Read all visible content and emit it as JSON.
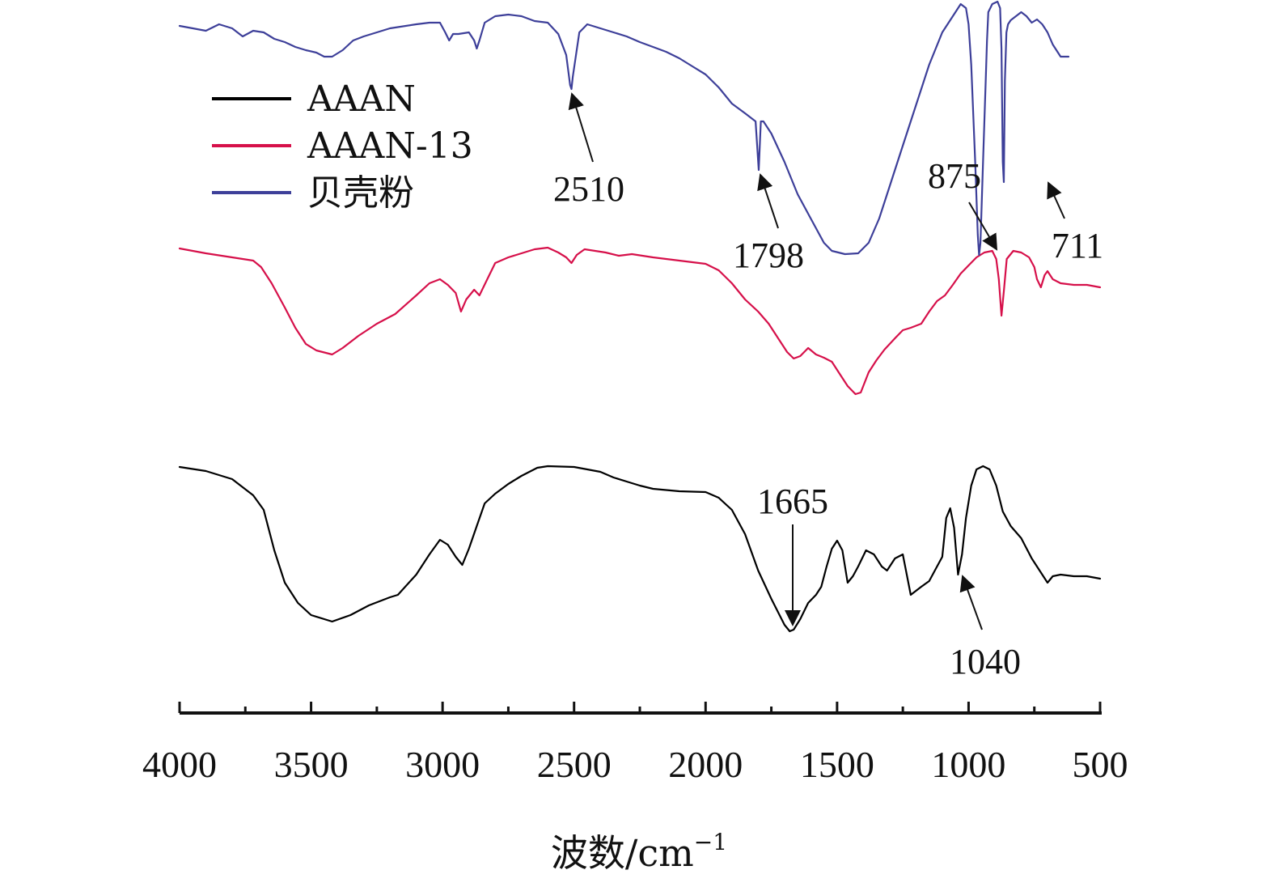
{
  "chart_data": {
    "type": "line",
    "title": "",
    "xlabel": "波数/cm",
    "xlabel_sup": "−1",
    "ylabel": "",
    "xlim": [
      4000,
      500
    ],
    "x_reversed": true,
    "xticks": [
      4000,
      3500,
      3000,
      2500,
      2000,
      1500,
      1000,
      500
    ],
    "grid": false,
    "legend": {
      "placement": "top-left",
      "entries": [
        {
          "name": "AAAN",
          "color": "#000000"
        },
        {
          "name": "AAAN-13",
          "color": "#d6104a"
        },
        {
          "name": "贝壳粉",
          "color": "#3d3f99"
        }
      ]
    },
    "series": [
      {
        "name": "AAAN",
        "color": "#000000",
        "points": [
          [
            4000,
            577
          ],
          [
            3900,
            582
          ],
          [
            3800,
            592
          ],
          [
            3720,
            612
          ],
          [
            3680,
            630
          ],
          [
            3640,
            680
          ],
          [
            3600,
            720
          ],
          [
            3550,
            745
          ],
          [
            3500,
            760
          ],
          [
            3420,
            768
          ],
          [
            3350,
            760
          ],
          [
            3280,
            748
          ],
          [
            3200,
            738
          ],
          [
            3170,
            735
          ],
          [
            3100,
            710
          ],
          [
            3050,
            685
          ],
          [
            3010,
            667
          ],
          [
            2980,
            673
          ],
          [
            2950,
            688
          ],
          [
            2925,
            698
          ],
          [
            2900,
            678
          ],
          [
            2870,
            650
          ],
          [
            2840,
            622
          ],
          [
            2800,
            610
          ],
          [
            2750,
            598
          ],
          [
            2700,
            588
          ],
          [
            2640,
            578
          ],
          [
            2600,
            576
          ],
          [
            2500,
            577
          ],
          [
            2450,
            580
          ],
          [
            2400,
            583
          ],
          [
            2350,
            590
          ],
          [
            2300,
            595
          ],
          [
            2250,
            600
          ],
          [
            2200,
            604
          ],
          [
            2100,
            607
          ],
          [
            2000,
            608
          ],
          [
            1950,
            615
          ],
          [
            1900,
            630
          ],
          [
            1850,
            660
          ],
          [
            1800,
            705
          ],
          [
            1750,
            740
          ],
          [
            1700,
            772
          ],
          [
            1680,
            780
          ],
          [
            1665,
            778
          ],
          [
            1640,
            765
          ],
          [
            1610,
            745
          ],
          [
            1580,
            735
          ],
          [
            1560,
            725
          ],
          [
            1540,
            700
          ],
          [
            1520,
            678
          ],
          [
            1500,
            668
          ],
          [
            1480,
            680
          ],
          [
            1460,
            720
          ],
          [
            1440,
            712
          ],
          [
            1420,
            700
          ],
          [
            1390,
            680
          ],
          [
            1360,
            685
          ],
          [
            1330,
            700
          ],
          [
            1310,
            705
          ],
          [
            1280,
            690
          ],
          [
            1250,
            685
          ],
          [
            1220,
            735
          ],
          [
            1180,
            725
          ],
          [
            1150,
            718
          ],
          [
            1120,
            700
          ],
          [
            1100,
            688
          ],
          [
            1085,
            640
          ],
          [
            1070,
            628
          ],
          [
            1055,
            652
          ],
          [
            1040,
            710
          ],
          [
            1025,
            685
          ],
          [
            1010,
            640
          ],
          [
            990,
            600
          ],
          [
            970,
            580
          ],
          [
            945,
            576
          ],
          [
            920,
            580
          ],
          [
            895,
            600
          ],
          [
            870,
            632
          ],
          [
            840,
            650
          ],
          [
            800,
            665
          ],
          [
            760,
            690
          ],
          [
            720,
            710
          ],
          [
            700,
            720
          ],
          [
            680,
            712
          ],
          [
            650,
            710
          ],
          [
            600,
            712
          ],
          [
            550,
            712
          ],
          [
            500,
            715
          ]
        ]
      },
      {
        "name": "AAAN-13",
        "color": "#d6104a",
        "points": [
          [
            4000,
            307
          ],
          [
            3900,
            313
          ],
          [
            3800,
            318
          ],
          [
            3720,
            322
          ],
          [
            3690,
            330
          ],
          [
            3650,
            350
          ],
          [
            3600,
            380
          ],
          [
            3560,
            405
          ],
          [
            3520,
            425
          ],
          [
            3480,
            433
          ],
          [
            3420,
            438
          ],
          [
            3380,
            430
          ],
          [
            3320,
            415
          ],
          [
            3250,
            400
          ],
          [
            3180,
            388
          ],
          [
            3100,
            365
          ],
          [
            3050,
            350
          ],
          [
            3010,
            345
          ],
          [
            2980,
            352
          ],
          [
            2950,
            362
          ],
          [
            2930,
            385
          ],
          [
            2910,
            370
          ],
          [
            2880,
            358
          ],
          [
            2860,
            365
          ],
          [
            2830,
            345
          ],
          [
            2800,
            325
          ],
          [
            2750,
            318
          ],
          [
            2700,
            313
          ],
          [
            2650,
            308
          ],
          [
            2600,
            306
          ],
          [
            2560,
            312
          ],
          [
            2530,
            318
          ],
          [
            2510,
            325
          ],
          [
            2490,
            315
          ],
          [
            2460,
            308
          ],
          [
            2420,
            310
          ],
          [
            2380,
            312
          ],
          [
            2330,
            316
          ],
          [
            2280,
            314
          ],
          [
            2200,
            318
          ],
          [
            2100,
            322
          ],
          [
            2000,
            326
          ],
          [
            1950,
            334
          ],
          [
            1900,
            350
          ],
          [
            1850,
            370
          ],
          [
            1800,
            385
          ],
          [
            1760,
            400
          ],
          [
            1720,
            420
          ],
          [
            1690,
            435
          ],
          [
            1665,
            443
          ],
          [
            1640,
            440
          ],
          [
            1610,
            430
          ],
          [
            1580,
            438
          ],
          [
            1550,
            442
          ],
          [
            1520,
            447
          ],
          [
            1490,
            462
          ],
          [
            1460,
            477
          ],
          [
            1430,
            487
          ],
          [
            1410,
            485
          ],
          [
            1380,
            460
          ],
          [
            1350,
            445
          ],
          [
            1320,
            432
          ],
          [
            1280,
            418
          ],
          [
            1250,
            408
          ],
          [
            1220,
            405
          ],
          [
            1180,
            400
          ],
          [
            1150,
            385
          ],
          [
            1120,
            372
          ],
          [
            1090,
            365
          ],
          [
            1060,
            352
          ],
          [
            1030,
            338
          ],
          [
            1000,
            328
          ],
          [
            970,
            318
          ],
          [
            940,
            312
          ],
          [
            910,
            310
          ],
          [
            895,
            320
          ],
          [
            885,
            345
          ],
          [
            875,
            390
          ],
          [
            866,
            360
          ],
          [
            855,
            320
          ],
          [
            830,
            310
          ],
          [
            800,
            312
          ],
          [
            770,
            318
          ],
          [
            750,
            330
          ],
          [
            740,
            345
          ],
          [
            725,
            355
          ],
          [
            711,
            340
          ],
          [
            700,
            335
          ],
          [
            680,
            345
          ],
          [
            650,
            350
          ],
          [
            600,
            352
          ],
          [
            550,
            352
          ],
          [
            500,
            355
          ]
        ]
      },
      {
        "name": "贝壳粉",
        "color": "#3d3f99",
        "points": [
          [
            4000,
            32
          ],
          [
            3950,
            35
          ],
          [
            3900,
            38
          ],
          [
            3850,
            30
          ],
          [
            3800,
            35
          ],
          [
            3760,
            45
          ],
          [
            3720,
            38
          ],
          [
            3680,
            40
          ],
          [
            3640,
            48
          ],
          [
            3600,
            52
          ],
          [
            3560,
            58
          ],
          [
            3520,
            62
          ],
          [
            3480,
            65
          ],
          [
            3450,
            70
          ],
          [
            3420,
            70
          ],
          [
            3380,
            62
          ],
          [
            3340,
            50
          ],
          [
            3300,
            45
          ],
          [
            3250,
            40
          ],
          [
            3200,
            35
          ],
          [
            3100,
            30
          ],
          [
            3050,
            28
          ],
          [
            3010,
            28
          ],
          [
            2990,
            40
          ],
          [
            2975,
            50
          ],
          [
            2960,
            42
          ],
          [
            2940,
            42
          ],
          [
            2900,
            40
          ],
          [
            2880,
            50
          ],
          [
            2870,
            60
          ],
          [
            2860,
            50
          ],
          [
            2840,
            28
          ],
          [
            2800,
            20
          ],
          [
            2750,
            18
          ],
          [
            2700,
            20
          ],
          [
            2650,
            26
          ],
          [
            2600,
            28
          ],
          [
            2560,
            42
          ],
          [
            2530,
            68
          ],
          [
            2515,
            105
          ],
          [
            2510,
            110
          ],
          [
            2505,
            95
          ],
          [
            2480,
            40
          ],
          [
            2450,
            30
          ],
          [
            2400,
            35
          ],
          [
            2350,
            40
          ],
          [
            2300,
            45
          ],
          [
            2250,
            52
          ],
          [
            2200,
            58
          ],
          [
            2150,
            64
          ],
          [
            2100,
            72
          ],
          [
            2050,
            82
          ],
          [
            2000,
            92
          ],
          [
            1950,
            108
          ],
          [
            1900,
            128
          ],
          [
            1850,
            140
          ],
          [
            1810,
            150
          ],
          [
            1798,
            210
          ],
          [
            1790,
            150
          ],
          [
            1780,
            150
          ],
          [
            1750,
            165
          ],
          [
            1700,
            200
          ],
          [
            1650,
            240
          ],
          [
            1600,
            270
          ],
          [
            1550,
            300
          ],
          [
            1520,
            310
          ],
          [
            1470,
            314
          ],
          [
            1420,
            313
          ],
          [
            1380,
            300
          ],
          [
            1340,
            270
          ],
          [
            1300,
            230
          ],
          [
            1250,
            180
          ],
          [
            1200,
            130
          ],
          [
            1150,
            80
          ],
          [
            1100,
            40
          ],
          [
            1050,
            15
          ],
          [
            1030,
            5
          ],
          [
            1010,
            10
          ],
          [
            1000,
            30
          ],
          [
            990,
            80
          ],
          [
            975,
            200
          ],
          [
            965,
            290
          ],
          [
            960,
            315
          ],
          [
            955,
            300
          ],
          [
            945,
            200
          ],
          [
            935,
            100
          ],
          [
            930,
            50
          ],
          [
            925,
            15
          ],
          [
            910,
            5
          ],
          [
            890,
            2
          ],
          [
            880,
            10
          ],
          [
            875,
            60
          ],
          [
            870,
            200
          ],
          [
            866,
            225
          ],
          [
            862,
            100
          ],
          [
            856,
            40
          ],
          [
            850,
            30
          ],
          [
            840,
            25
          ],
          [
            820,
            20
          ],
          [
            800,
            15
          ],
          [
            780,
            20
          ],
          [
            760,
            28
          ],
          [
            740,
            24
          ],
          [
            720,
            30
          ],
          [
            700,
            40
          ],
          [
            680,
            55
          ],
          [
            650,
            70
          ],
          [
            620,
            70
          ]
        ]
      }
    ],
    "annotations": [
      {
        "label": "2510",
        "x": 2510
      },
      {
        "label": "1798",
        "x": 1798
      },
      {
        "label": "875",
        "x": 875
      },
      {
        "label": "711",
        "x": 711
      },
      {
        "label": "1665",
        "x": 1665
      },
      {
        "label": "1040",
        "x": 1040
      }
    ]
  }
}
